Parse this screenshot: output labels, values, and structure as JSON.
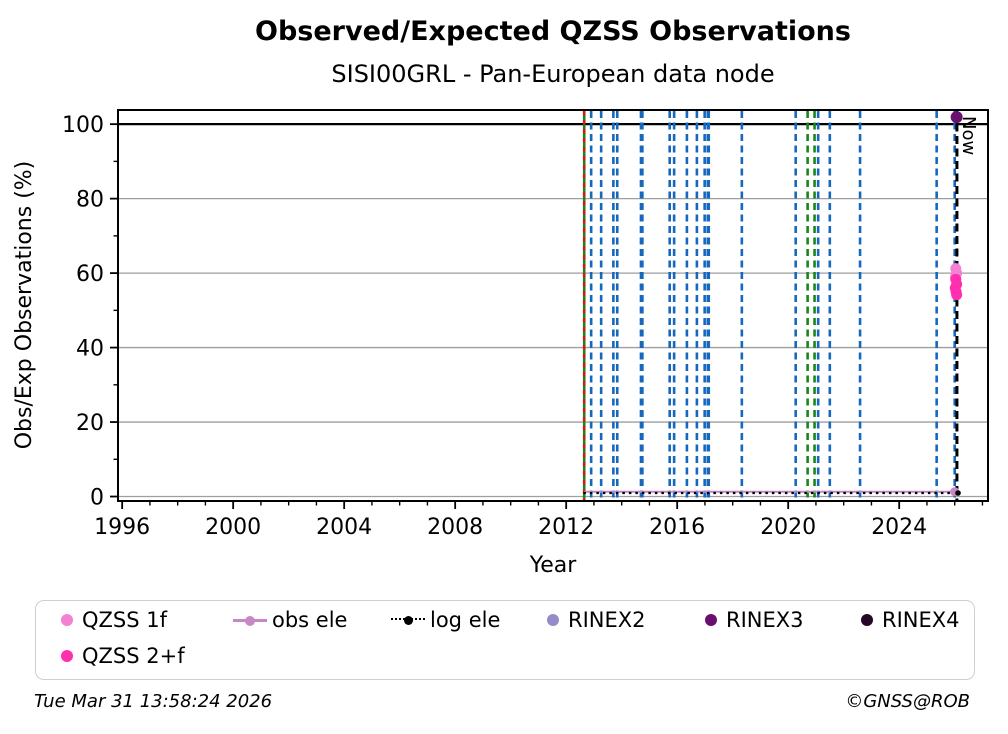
{
  "header": {
    "title": "Observed/Expected QZSS Observations",
    "subtitle": "SISI00GRL - Pan-European data node"
  },
  "chart_data": {
    "type": "scatter",
    "title": "Observed/Expected QZSS Observations",
    "subtitle": "SISI00GRL - Pan-European data node",
    "xlabel": "Year",
    "ylabel": "Obs/Exp Observations (%)",
    "x_range": [
      1995.85,
      2027.2
    ],
    "y_range": [
      -1.2,
      103.8
    ],
    "x_ticks": [
      1996,
      2000,
      2004,
      2008,
      2012,
      2016,
      2020,
      2024
    ],
    "y_ticks": [
      0,
      20,
      40,
      60,
      80,
      100
    ],
    "x_minor_step": 1,
    "y_minor_step": 10,
    "grid": "horizontal",
    "grid_color": "#9e9e9e",
    "reference_line_100": {
      "y": 100,
      "color": "#000000"
    },
    "event_lines": [
      {
        "year": 2012.65,
        "color": "#178717",
        "style": "solid",
        "width": 2.6
      },
      {
        "year": 2012.65,
        "color": "#d11a1a",
        "style": "dash-short",
        "width": 2.6
      },
      {
        "year": 2012.9,
        "color": "#1668be",
        "style": "dash",
        "width": 2.6
      },
      {
        "year": 2013.26,
        "color": "#1668be",
        "style": "dash",
        "width": 2.6
      },
      {
        "year": 2013.7,
        "color": "#1668be",
        "style": "dash",
        "width": 2.6
      },
      {
        "year": 2013.84,
        "color": "#1668be",
        "style": "dash",
        "width": 2.6
      },
      {
        "year": 2014.72,
        "color": "#1668be",
        "style": "dash",
        "width": 4.0
      },
      {
        "year": 2015.73,
        "color": "#1668be",
        "style": "dash",
        "width": 2.6
      },
      {
        "year": 2015.89,
        "color": "#1668be",
        "style": "dash",
        "width": 2.6
      },
      {
        "year": 2016.35,
        "color": "#1668be",
        "style": "dash",
        "width": 2.6
      },
      {
        "year": 2016.71,
        "color": "#1668be",
        "style": "dash",
        "width": 2.6
      },
      {
        "year": 2016.99,
        "color": "#1668be",
        "style": "dash",
        "width": 2.6
      },
      {
        "year": 2017.12,
        "color": "#1668be",
        "style": "dash",
        "width": 3.6
      },
      {
        "year": 2018.33,
        "color": "#1668be",
        "style": "dash",
        "width": 2.6
      },
      {
        "year": 2020.27,
        "color": "#1668be",
        "style": "dash",
        "width": 2.6
      },
      {
        "year": 2020.7,
        "color": "#178717",
        "style": "dash",
        "width": 2.6
      },
      {
        "year": 2020.95,
        "color": "#178717",
        "style": "dash",
        "width": 2.6
      },
      {
        "year": 2021.08,
        "color": "#1668be",
        "style": "dash",
        "width": 2.6
      },
      {
        "year": 2021.5,
        "color": "#1668be",
        "style": "dash",
        "width": 2.6
      },
      {
        "year": 2022.59,
        "color": "#1668be",
        "style": "dash",
        "width": 2.6
      },
      {
        "year": 2025.35,
        "color": "#1668be",
        "style": "dash",
        "width": 2.6
      },
      {
        "year": 2026.0,
        "color": "#1668be",
        "style": "dash",
        "width": 2.6
      }
    ],
    "now_line": {
      "year": 2026.08,
      "label": "Now",
      "color": "#000000",
      "style": "dash-long",
      "width": 3
    },
    "series": [
      {
        "name": "QZSS 1f",
        "color": "#f581d2",
        "marker": "circle",
        "points": [
          [
            2026.04,
            61.2
          ],
          [
            2026.07,
            60.0
          ],
          [
            2026.03,
            59.0
          ]
        ]
      },
      {
        "name": "QZSS 2+f",
        "color": "#ff2fb0",
        "marker": "circle",
        "points": [
          [
            2026.04,
            58.3
          ],
          [
            2026.07,
            57.0
          ],
          [
            2026.02,
            56.0
          ],
          [
            2026.05,
            55.0
          ],
          [
            2026.07,
            54.2
          ]
        ]
      },
      {
        "name": "obs ele",
        "color": "#c687c6",
        "type": "line",
        "y": 1.3,
        "x_start": 2012.65,
        "x_end": 2026.0,
        "end_marker": [
          2026.0,
          1.3
        ]
      },
      {
        "name": "log ele",
        "color": "#000000",
        "type": "dotted-line",
        "y": 0.95,
        "x_start": 2012.62,
        "x_end": 2026.12,
        "end_marker": [
          2026.12,
          0.95
        ]
      },
      {
        "name": "RINEX2",
        "color": "#958bc9",
        "marker": "circle",
        "points": []
      },
      {
        "name": "RINEX3",
        "color": "#6b0f6f",
        "marker": "circle",
        "points": [
          [
            2026.07,
            101.9
          ]
        ]
      },
      {
        "name": "RINEX4",
        "color": "#250826",
        "marker": "circle",
        "points": []
      }
    ]
  },
  "legend": {
    "items": [
      {
        "label": "QZSS 1f",
        "color": "#f581d2",
        "marker": "dot"
      },
      {
        "label": "obs ele",
        "color": "#c687c6",
        "marker": "line-dot"
      },
      {
        "label": "log ele",
        "color": "#000000",
        "marker": "dotted-line-dot"
      },
      {
        "label": "RINEX2",
        "color": "#958bc9",
        "marker": "dot"
      },
      {
        "label": "RINEX3",
        "color": "#6b0f6f",
        "marker": "dot"
      },
      {
        "label": "RINEX4",
        "color": "#250826",
        "marker": "dot"
      },
      {
        "label": "QZSS 2+f",
        "color": "#ff2fb0",
        "marker": "dot"
      }
    ]
  },
  "footer": {
    "timestamp": "Tue Mar 31 13:58:24 2026",
    "credit": "©GNSS@ROB"
  }
}
